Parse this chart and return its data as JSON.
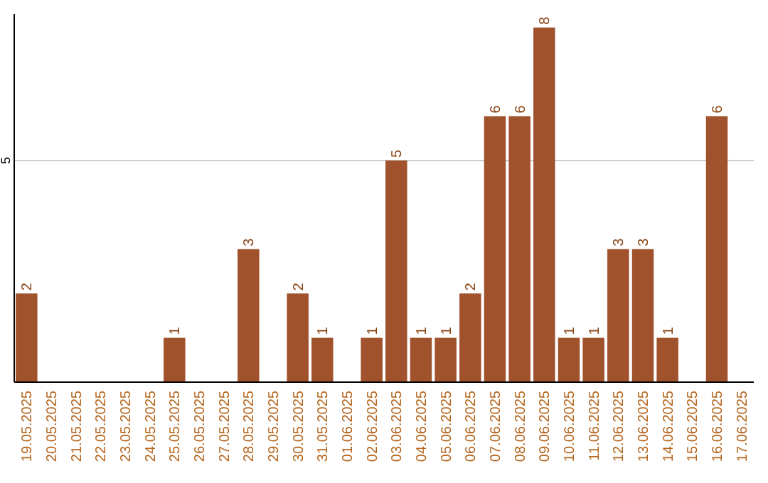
{
  "chart_data": {
    "type": "bar",
    "categories": [
      "19.05.2025",
      "20.05.2025",
      "21.05.2025",
      "22.05.2025",
      "23.05.2025",
      "24.05.2025",
      "25.05.2025",
      "26.05.2025",
      "27.05.2025",
      "28.05.2025",
      "29.05.2025",
      "30.05.2025",
      "31.05.2025",
      "01.06.2025",
      "02.06.2025",
      "03.06.2025",
      "04.06.2025",
      "05.06.2025",
      "06.06.2025",
      "07.06.2025",
      "08.06.2025",
      "09.06.2025",
      "10.06.2025",
      "11.06.2025",
      "12.06.2025",
      "13.06.2025",
      "14.06.2025",
      "15.06.2025",
      "16.06.2025",
      "17.06.2025"
    ],
    "values": [
      2,
      0,
      0,
      0,
      0,
      0,
      1,
      0,
      0,
      3,
      0,
      2,
      1,
      0,
      1,
      5,
      1,
      1,
      2,
      6,
      6,
      8,
      1,
      1,
      3,
      3,
      1,
      0,
      6,
      0
    ],
    "value_labels": [
      "2",
      null,
      null,
      null,
      null,
      null,
      "1",
      null,
      null,
      "3",
      null,
      "2",
      "1",
      null,
      "1",
      "5",
      "1",
      "1",
      "2",
      "6",
      "6",
      "8",
      "1",
      "1",
      "3",
      "3",
      "1",
      null,
      "6",
      null
    ],
    "color": "#a0522d",
    "ylim": [
      0,
      8.3
    ],
    "yticks": [
      5
    ],
    "grid": "y"
  }
}
